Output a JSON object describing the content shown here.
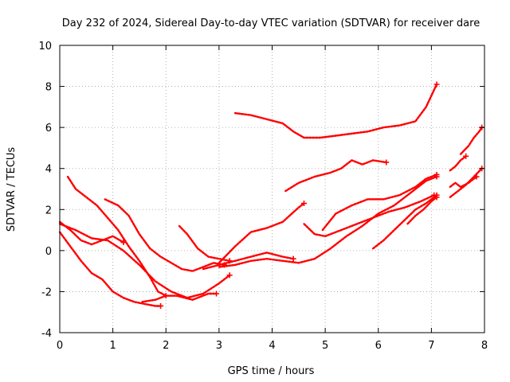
{
  "chart_data": {
    "type": "line",
    "title": "Day 232 of 2024, Sidereal Day-to-day VTEC variation (SDTVAR) for receiver dare",
    "xlabel": "GPS time / hours",
    "ylabel": "SDTVAR / TECUs",
    "xlim": [
      0,
      8
    ],
    "ylim": [
      -4,
      10
    ],
    "xticks": [
      0,
      1,
      2,
      3,
      4,
      5,
      6,
      7,
      8
    ],
    "yticks": [
      -4,
      -2,
      0,
      2,
      4,
      6,
      8,
      10
    ],
    "xtick_labels": [
      "0",
      "1",
      "2",
      "3",
      "4",
      "5",
      "6",
      "7",
      "8"
    ],
    "ytick_labels": [
      "-4",
      "-2",
      "0",
      "2",
      "4",
      "6",
      "8",
      "10"
    ],
    "grid": true,
    "marker": "+",
    "color": "#ff0000",
    "series": [
      {
        "name": "s1",
        "x": [
          0.0,
          0.2,
          0.4,
          0.6,
          0.8,
          1.0,
          1.2,
          1.4,
          1.6,
          1.8,
          1.9
        ],
        "y": [
          0.9,
          0.2,
          -0.5,
          -1.1,
          -1.4,
          -2.0,
          -2.3,
          -2.5,
          -2.6,
          -2.7,
          -2.7
        ]
      },
      {
        "name": "s2",
        "x": [
          0.0,
          0.2,
          0.4,
          0.6,
          0.8,
          1.0,
          1.2
        ],
        "y": [
          1.4,
          1.0,
          0.5,
          0.3,
          0.5,
          0.7,
          0.4
        ]
      },
      {
        "name": "s3",
        "x": [
          0.15,
          0.3,
          0.5,
          0.7,
          0.9,
          1.1,
          1.3,
          1.5,
          1.7,
          1.85,
          2.0
        ],
        "y": [
          3.6,
          3.0,
          2.6,
          2.2,
          1.6,
          1.0,
          0.2,
          -0.5,
          -1.3,
          -2.0,
          -2.2
        ]
      },
      {
        "name": "s4",
        "x": [
          0.0,
          0.3,
          0.6,
          0.9,
          1.2,
          1.5,
          1.8,
          2.1,
          2.4,
          2.7,
          3.0,
          3.2
        ],
        "y": [
          1.3,
          1.0,
          0.6,
          0.5,
          0.0,
          -0.7,
          -1.5,
          -2.0,
          -2.3,
          -2.1,
          -1.6,
          -1.2
        ]
      },
      {
        "name": "s5",
        "x": [
          1.55,
          1.8,
          2.0,
          2.2,
          2.5,
          2.8,
          2.95
        ],
        "y": [
          -2.5,
          -2.4,
          -2.2,
          -2.2,
          -2.4,
          -2.1,
          -2.1
        ]
      },
      {
        "name": "s6",
        "x": [
          0.85,
          1.1,
          1.3,
          1.5,
          1.7,
          1.9,
          2.1,
          2.3,
          2.5,
          2.7,
          2.9,
          3.1
        ],
        "y": [
          2.5,
          2.2,
          1.7,
          0.8,
          0.1,
          -0.3,
          -0.6,
          -0.9,
          -1.0,
          -0.8,
          -0.6,
          -0.7
        ]
      },
      {
        "name": "s7",
        "x": [
          2.25,
          2.4,
          2.6,
          2.8,
          3.0,
          3.2
        ],
        "y": [
          1.2,
          0.8,
          0.1,
          -0.3,
          -0.4,
          -0.5
        ]
      },
      {
        "name": "s8",
        "x": [
          3.0,
          3.3,
          3.6,
          3.9,
          4.2,
          4.5,
          4.6
        ],
        "y": [
          -0.6,
          0.2,
          0.9,
          1.1,
          1.4,
          2.1,
          2.3
        ]
      },
      {
        "name": "s9",
        "x": [
          3.0,
          3.3,
          3.6,
          3.9,
          4.2,
          4.5,
          4.8,
          5.1,
          5.4,
          5.7,
          6.0,
          6.3,
          6.6,
          6.9,
          7.1
        ],
        "y": [
          -0.8,
          -0.7,
          -0.5,
          -0.4,
          -0.5,
          -0.6,
          -0.4,
          0.1,
          0.7,
          1.2,
          1.8,
          2.2,
          2.8,
          3.4,
          3.6
        ]
      },
      {
        "name": "s10",
        "x": [
          2.7,
          3.0,
          3.3,
          3.6,
          3.9,
          4.2,
          4.4
        ],
        "y": [
          -0.9,
          -0.7,
          -0.5,
          -0.3,
          -0.1,
          -0.3,
          -0.4
        ]
      },
      {
        "name": "s11",
        "x": [
          3.3,
          3.6,
          3.9,
          4.2,
          4.4,
          4.6,
          4.9,
          5.2,
          5.5,
          5.8,
          6.1,
          6.4,
          6.7,
          6.9,
          7.1
        ],
        "y": [
          6.7,
          6.6,
          6.4,
          6.2,
          5.8,
          5.5,
          5.5,
          5.6,
          5.7,
          5.8,
          6.0,
          6.1,
          6.3,
          7.0,
          8.1
        ]
      },
      {
        "name": "s12",
        "x": [
          4.25,
          4.5,
          4.8,
          5.1,
          5.3,
          5.5,
          5.7,
          5.9,
          6.15
        ],
        "y": [
          2.9,
          3.3,
          3.6,
          3.8,
          4.0,
          4.4,
          4.2,
          4.4,
          4.3
        ]
      },
      {
        "name": "s13",
        "x": [
          4.95,
          5.2,
          5.5,
          5.8,
          6.1,
          6.4,
          6.7,
          6.9,
          7.1
        ],
        "y": [
          1.0,
          1.8,
          2.2,
          2.5,
          2.5,
          2.7,
          3.1,
          3.5,
          3.7
        ]
      },
      {
        "name": "s14",
        "x": [
          4.6,
          4.8,
          5.0,
          5.3,
          5.6,
          5.9,
          6.2,
          6.5,
          6.8,
          7.05
        ],
        "y": [
          1.3,
          0.8,
          0.7,
          1.0,
          1.3,
          1.6,
          1.9,
          2.1,
          2.4,
          2.7
        ]
      },
      {
        "name": "s15",
        "x": [
          5.9,
          6.1,
          6.3,
          6.5,
          6.7,
          6.9,
          7.1
        ],
        "y": [
          0.1,
          0.5,
          1.0,
          1.5,
          2.0,
          2.3,
          2.7
        ]
      },
      {
        "name": "s16",
        "x": [
          6.55,
          6.7,
          6.85,
          7.0,
          7.1
        ],
        "y": [
          1.3,
          1.7,
          2.0,
          2.4,
          2.6
        ]
      },
      {
        "name": "s17",
        "x": [
          7.35,
          7.5,
          7.65,
          7.8,
          7.95
        ],
        "y": [
          2.6,
          2.9,
          3.2,
          3.6,
          4.0
        ]
      },
      {
        "name": "s18",
        "x": [
          7.35,
          7.45,
          7.55,
          7.65
        ],
        "y": [
          3.9,
          4.1,
          4.4,
          4.6
        ]
      },
      {
        "name": "s19",
        "x": [
          7.55,
          7.7,
          7.8,
          7.9,
          7.95
        ],
        "y": [
          4.7,
          5.1,
          5.5,
          5.8,
          6.0
        ]
      },
      {
        "name": "s20",
        "x": [
          7.35,
          7.45,
          7.55,
          7.7,
          7.85
        ],
        "y": [
          3.1,
          3.3,
          3.1,
          3.3,
          3.6
        ]
      }
    ]
  }
}
